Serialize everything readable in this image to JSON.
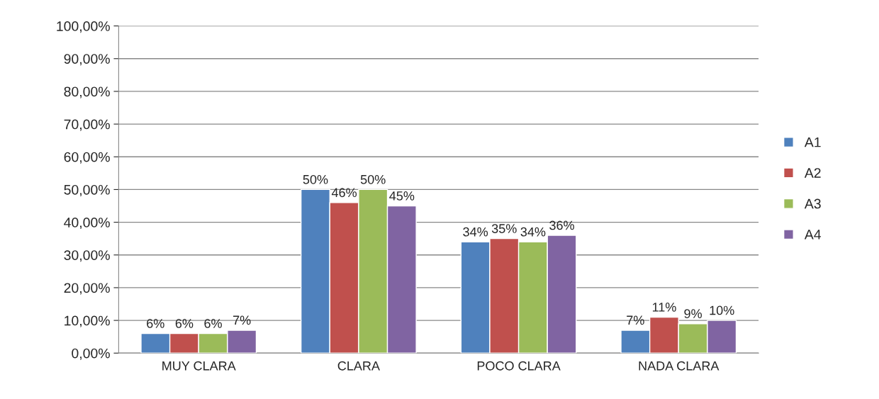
{
  "chart_data": {
    "type": "bar",
    "categories": [
      "MUY CLARA",
      "CLARA",
      "POCO CLARA",
      "NADA CLARA"
    ],
    "series": [
      {
        "name": "A1",
        "color": "#4f81bd",
        "values": [
          6,
          50,
          34,
          7
        ],
        "value_labels": [
          "6%",
          "50%",
          "34%",
          "7%"
        ]
      },
      {
        "name": "A2",
        "color": "#c0504d",
        "values": [
          6,
          46,
          35,
          11
        ],
        "value_labels": [
          "6%",
          "46%",
          "35%",
          "11%"
        ]
      },
      {
        "name": "A3",
        "color": "#9bbb59",
        "values": [
          6,
          50,
          34,
          9
        ],
        "value_labels": [
          "6%",
          "50%",
          "34%",
          "9%"
        ]
      },
      {
        "name": "A4",
        "color": "#8064a2",
        "values": [
          7,
          45,
          36,
          10
        ],
        "value_labels": [
          "7%",
          "45%",
          "36%",
          "10%"
        ]
      }
    ],
    "ylim": [
      0,
      100
    ],
    "yticks": [
      {
        "value": 0,
        "label": "0,00%"
      },
      {
        "value": 10,
        "label": "10,00%"
      },
      {
        "value": 20,
        "label": "20,00%"
      },
      {
        "value": 30,
        "label": "30,00%"
      },
      {
        "value": 40,
        "label": "40,00%"
      },
      {
        "value": 50,
        "label": "50,00%"
      },
      {
        "value": 60,
        "label": "60,00%"
      },
      {
        "value": 70,
        "label": "70,00%"
      },
      {
        "value": 80,
        "label": "80,00%"
      },
      {
        "value": 90,
        "label": "90,00%"
      },
      {
        "value": 100,
        "label": "100,00%"
      }
    ],
    "grid": "y",
    "legend": "right"
  }
}
